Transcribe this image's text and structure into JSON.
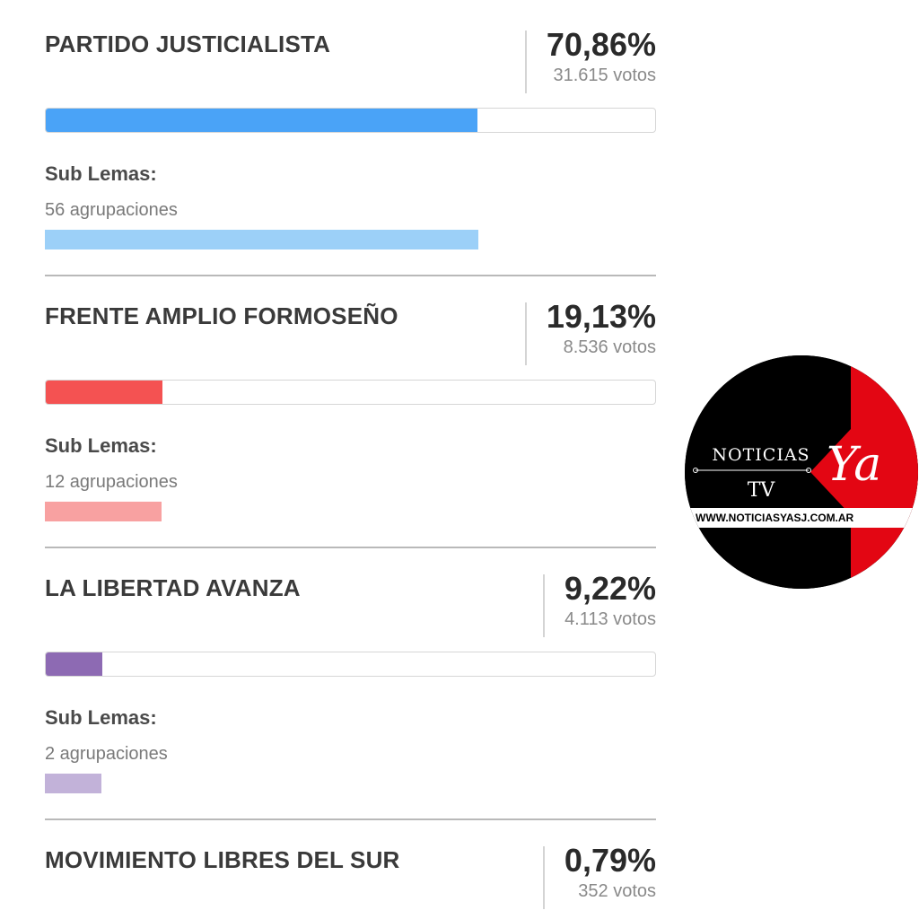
{
  "parties": [
    {
      "name": "PARTIDO JUSTICIALISTA",
      "percent": "70,86%",
      "votes": "31.615 votos",
      "share": 0.7086,
      "color": "#4aa3f7",
      "sub_color": "#9cd0f8",
      "sub_lemas_label": "Sub Lemas:",
      "sub_lemas_count": "56 agrupaciones",
      "show_details": true
    },
    {
      "name": "FRENTE AMPLIO FORMOSEÑO",
      "percent": "19,13%",
      "votes": "8.536 votos",
      "share": 0.1913,
      "color": "#f45252",
      "sub_color": "#f8a1a1",
      "sub_lemas_label": "Sub Lemas:",
      "sub_lemas_count": "12 agrupaciones",
      "show_details": true
    },
    {
      "name": "LA LIBERTAD AVANZA",
      "percent": "9,22%",
      "votes": "4.113 votos",
      "share": 0.0922,
      "color": "#8d6ab3",
      "sub_color": "#c2b2d9",
      "sub_lemas_label": "Sub Lemas:",
      "sub_lemas_count": "2 agrupaciones",
      "show_details": true
    },
    {
      "name": "MOVIMIENTO LIBRES DEL SUR",
      "percent": "0,79%",
      "votes": "352 votos",
      "share": 0.0079,
      "show_details": false
    }
  ],
  "logo": {
    "line1": "NOTICIAS",
    "line2": "TV",
    "script": "Ya",
    "url": "WWW.NOTICIASYASJ.COM.AR",
    "colors": {
      "black": "#000000",
      "red": "#e30613"
    }
  }
}
